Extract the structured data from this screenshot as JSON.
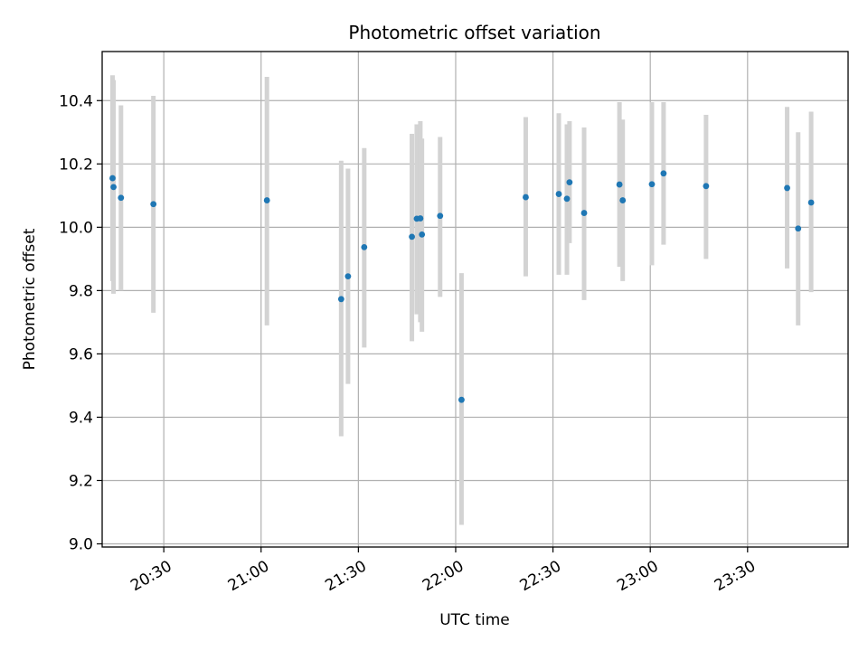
{
  "chart_data": {
    "type": "scatter",
    "title": "Photometric offset variation",
    "xlabel": "UTC time",
    "ylabel": "Photometric offset",
    "x_unit": "minutes since 20:00 UTC",
    "xlim": [
      11.0,
      241.0
    ],
    "ylim": [
      8.99,
      10.555
    ],
    "grid": true,
    "xticks": [
      {
        "value": 30,
        "label": "20:30"
      },
      {
        "value": 60,
        "label": "21:00"
      },
      {
        "value": 90,
        "label": "21:30"
      },
      {
        "value": 120,
        "label": "22:00"
      },
      {
        "value": 150,
        "label": "22:30"
      },
      {
        "value": 180,
        "label": "23:00"
      },
      {
        "value": 210,
        "label": "23:30"
      }
    ],
    "yticks": [
      {
        "value": 9.0,
        "label": "9.0"
      },
      {
        "value": 9.2,
        "label": "9.2"
      },
      {
        "value": 9.4,
        "label": "9.4"
      },
      {
        "value": 9.6,
        "label": "9.6"
      },
      {
        "value": 9.8,
        "label": "9.8"
      },
      {
        "value": 10.0,
        "label": "10.0"
      },
      {
        "value": 10.2,
        "label": "10.2"
      },
      {
        "value": 10.4,
        "label": "10.4"
      }
    ],
    "colors": {
      "point": "#1f77b4",
      "errorbar": "#d3d3d3",
      "grid": "#b0b0b0"
    },
    "points": [
      {
        "x": 14.2,
        "y": 10.155,
        "err_low": 9.83,
        "err_high": 10.48
      },
      {
        "x": 14.5,
        "y": 10.127,
        "err_low": 9.79,
        "err_high": 10.465
      },
      {
        "x": 16.8,
        "y": 10.093,
        "err_low": 9.8,
        "err_high": 10.385
      },
      {
        "x": 26.8,
        "y": 10.073,
        "err_low": 9.73,
        "err_high": 10.415
      },
      {
        "x": 61.8,
        "y": 10.085,
        "err_low": 9.69,
        "err_high": 10.475
      },
      {
        "x": 84.7,
        "y": 9.773,
        "err_low": 9.34,
        "err_high": 10.21
      },
      {
        "x": 86.8,
        "y": 9.845,
        "err_low": 9.505,
        "err_high": 10.185
      },
      {
        "x": 91.8,
        "y": 9.937,
        "err_low": 9.62,
        "err_high": 10.25
      },
      {
        "x": 106.5,
        "y": 9.97,
        "err_low": 9.64,
        "err_high": 10.295
      },
      {
        "x": 108.0,
        "y": 10.027,
        "err_low": 9.725,
        "err_high": 10.325
      },
      {
        "x": 109.1,
        "y": 10.028,
        "err_low": 9.7,
        "err_high": 10.335
      },
      {
        "x": 109.6,
        "y": 9.977,
        "err_low": 9.67,
        "err_high": 10.28
      },
      {
        "x": 115.2,
        "y": 10.036,
        "err_low": 9.78,
        "err_high": 10.285
      },
      {
        "x": 121.8,
        "y": 9.455,
        "err_low": 9.06,
        "err_high": 9.855
      },
      {
        "x": 141.6,
        "y": 10.095,
        "err_low": 9.845,
        "err_high": 10.348
      },
      {
        "x": 151.8,
        "y": 10.105,
        "err_low": 9.85,
        "err_high": 10.36
      },
      {
        "x": 154.3,
        "y": 10.09,
        "err_low": 9.85,
        "err_high": 10.325
      },
      {
        "x": 155.1,
        "y": 10.142,
        "err_low": 9.95,
        "err_high": 10.335
      },
      {
        "x": 159.6,
        "y": 10.045,
        "err_low": 9.77,
        "err_high": 10.315
      },
      {
        "x": 170.5,
        "y": 10.135,
        "err_low": 9.875,
        "err_high": 10.395
      },
      {
        "x": 171.5,
        "y": 10.085,
        "err_low": 9.83,
        "err_high": 10.34
      },
      {
        "x": 180.5,
        "y": 10.136,
        "err_low": 9.88,
        "err_high": 10.395
      },
      {
        "x": 184.1,
        "y": 10.17,
        "err_low": 9.945,
        "err_high": 10.395
      },
      {
        "x": 197.2,
        "y": 10.13,
        "err_low": 9.9,
        "err_high": 10.355
      },
      {
        "x": 222.2,
        "y": 10.124,
        "err_low": 9.87,
        "err_high": 10.38
      },
      {
        "x": 225.6,
        "y": 9.996,
        "err_low": 9.69,
        "err_high": 10.3
      },
      {
        "x": 229.6,
        "y": 10.078,
        "err_low": 9.795,
        "err_high": 10.365
      }
    ]
  }
}
